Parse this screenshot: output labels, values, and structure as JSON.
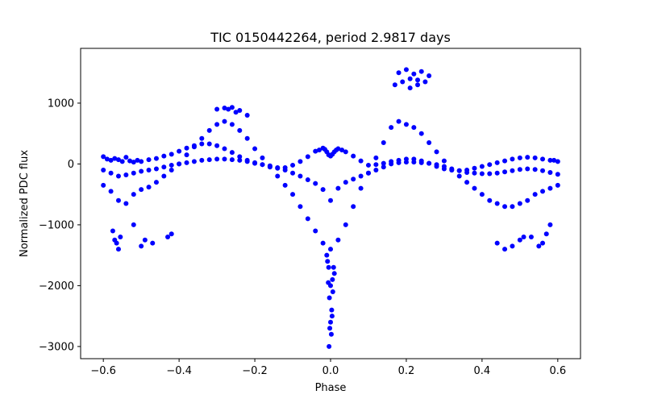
{
  "chart_data": {
    "type": "scatter",
    "title": "TIC 0150442264, period 2.9817 days",
    "xlabel": "Phase",
    "ylabel": "Normalized PDC flux",
    "xlim": [
      -0.66,
      0.66
    ],
    "ylim": [
      -3200,
      1900
    ],
    "xticks": [
      -0.6,
      -0.4,
      -0.2,
      0.0,
      0.2,
      0.4,
      0.6
    ],
    "xtick_labels": [
      "−0.6",
      "−0.4",
      "−0.2",
      "0.0",
      "0.2",
      "0.4",
      "0.6"
    ],
    "yticks": [
      -3000,
      -2000,
      -1000,
      0,
      1000
    ],
    "ytick_labels": [
      "−3000",
      "−2000",
      "−1000",
      "0",
      "1000"
    ],
    "grid": false,
    "marker_color": "#0000ff",
    "series": [
      {
        "x": [
          -0.6,
          -0.59,
          -0.58,
          -0.57,
          -0.56,
          -0.55,
          -0.54,
          -0.53,
          -0.52,
          -0.51,
          -0.5,
          -0.48,
          -0.46,
          -0.44,
          -0.42,
          -0.4,
          -0.38,
          -0.36,
          -0.34,
          -0.32,
          -0.3,
          -0.28,
          -0.26,
          -0.24,
          -0.22,
          -0.2,
          -0.18,
          -0.16,
          -0.14,
          -0.12,
          -0.1,
          -0.08,
          -0.06,
          -0.04,
          -0.03,
          -0.02,
          -0.015,
          -0.01,
          -0.005,
          0.0,
          0.005,
          0.01,
          0.015,
          0.02,
          0.03,
          0.04,
          0.06,
          0.08,
          0.1,
          0.12,
          0.14,
          0.16,
          0.18,
          0.2,
          0.22,
          0.24,
          0.26,
          0.28,
          0.3,
          0.32,
          0.34,
          0.36,
          0.38,
          0.4,
          0.42,
          0.44,
          0.46,
          0.48,
          0.5,
          0.52,
          0.54,
          0.56,
          0.58,
          0.59,
          0.6,
          -0.6,
          -0.58,
          -0.56,
          -0.54,
          -0.52,
          -0.5,
          -0.48,
          -0.46,
          -0.44,
          -0.42,
          -0.4,
          -0.38,
          -0.36,
          -0.34,
          -0.32,
          -0.3,
          -0.28,
          -0.26,
          -0.24,
          -0.22,
          -0.2,
          -0.18,
          -0.16,
          -0.14,
          -0.12,
          -0.1,
          -0.08,
          -0.06,
          -0.04,
          -0.02,
          0.0,
          0.02,
          0.04,
          0.06,
          0.08,
          0.1,
          0.12,
          0.14,
          0.16,
          0.18,
          0.2,
          0.22,
          0.24,
          0.26,
          0.28,
          0.3,
          0.32,
          0.34,
          0.36,
          0.38,
          0.4,
          0.42,
          0.44,
          0.46,
          0.48,
          0.5,
          0.52,
          0.54,
          0.56,
          0.58,
          0.6,
          -0.6,
          -0.58,
          -0.56,
          -0.54,
          -0.52,
          -0.5,
          -0.48,
          -0.46,
          -0.44,
          -0.42,
          -0.4,
          -0.38,
          -0.36,
          -0.34,
          -0.32,
          -0.3,
          -0.28,
          -0.26,
          -0.24,
          -0.22,
          -0.2,
          -0.18,
          -0.16,
          -0.14,
          -0.12,
          -0.1,
          -0.08,
          -0.06,
          -0.04,
          -0.02,
          0.0,
          0.02,
          0.04,
          0.06,
          0.08,
          0.1,
          0.12,
          0.14,
          0.16,
          0.18,
          0.2,
          0.22,
          0.24,
          0.26,
          0.28,
          0.3,
          0.32,
          0.34,
          0.36,
          0.38,
          0.4,
          0.42,
          0.44,
          0.46,
          0.48,
          0.5,
          0.52,
          0.54,
          0.56,
          0.58,
          0.6,
          -0.3,
          -0.28,
          -0.26,
          -0.24,
          -0.22,
          -0.25,
          -0.27,
          0.17,
          0.19,
          0.21,
          0.23,
          0.25,
          0.18,
          0.2,
          0.22,
          0.24,
          0.26,
          0.21,
          0.23,
          -0.575,
          -0.57,
          -0.565,
          -0.56,
          -0.555,
          -0.52,
          -0.5,
          -0.49,
          -0.47,
          -0.43,
          -0.42,
          0.44,
          0.46,
          0.48,
          0.5,
          0.51,
          0.53,
          0.55,
          0.56,
          0.57,
          0.58,
          -0.01,
          -0.005,
          0.0,
          0.005,
          0.01,
          -0.003,
          0.003,
          -0.008,
          0.008,
          0.0,
          0.002,
          -0.002,
          0.006,
          -0.006,
          0.004,
          -0.004
        ],
        "y": [
          120,
          80,
          60,
          90,
          70,
          40,
          110,
          50,
          30,
          60,
          40,
          70,
          90,
          130,
          160,
          210,
          260,
          300,
          330,
          330,
          300,
          250,
          190,
          120,
          60,
          20,
          -10,
          -40,
          -70,
          -60,
          -20,
          40,
          120,
          210,
          230,
          260,
          240,
          200,
          150,
          130,
          160,
          200,
          230,
          250,
          230,
          200,
          130,
          50,
          -20,
          -10,
          10,
          40,
          60,
          80,
          80,
          50,
          10,
          -40,
          -80,
          -100,
          -110,
          -100,
          -70,
          -40,
          -10,
          20,
          50,
          80,
          100,
          110,
          100,
          80,
          60,
          60,
          40,
          -100,
          -150,
          -200,
          -180,
          -150,
          -120,
          -100,
          -80,
          -50,
          -20,
          0,
          20,
          40,
          60,
          70,
          80,
          80,
          70,
          60,
          40,
          10,
          -10,
          -30,
          -60,
          -100,
          -150,
          -200,
          -260,
          -320,
          -420,
          -600,
          -400,
          -300,
          -250,
          -200,
          -150,
          -100,
          -50,
          0,
          20,
          30,
          30,
          20,
          10,
          -10,
          -40,
          -80,
          -110,
          -140,
          -150,
          -160,
          -160,
          -150,
          -130,
          -110,
          -90,
          -80,
          -90,
          -110,
          -140,
          -170,
          -350,
          -450,
          -600,
          -650,
          -500,
          -420,
          -380,
          -300,
          -200,
          -100,
          0,
          150,
          280,
          420,
          550,
          650,
          700,
          650,
          550,
          420,
          250,
          100,
          -50,
          -200,
          -350,
          -500,
          -700,
          -900,
          -1100,
          -1300,
          -1400,
          -1250,
          -1000,
          -700,
          -400,
          -150,
          100,
          350,
          600,
          700,
          650,
          600,
          500,
          350,
          200,
          50,
          -100,
          -200,
          -300,
          -400,
          -500,
          -600,
          -650,
          -700,
          -700,
          -650,
          -600,
          -500,
          -450,
          -400,
          -350,
          900,
          920,
          930,
          880,
          800,
          850,
          900,
          1300,
          1350,
          1400,
          1380,
          1350,
          1500,
          1550,
          1480,
          1520,
          1450,
          1250,
          1300,
          -1100,
          -1250,
          -1300,
          -1400,
          -1200,
          -1000,
          -1350,
          -1250,
          -1300,
          -1200,
          -1150,
          -1300,
          -1400,
          -1350,
          -1250,
          -1200,
          -1200,
          -1350,
          -1300,
          -1150,
          -1000,
          -1500,
          -1700,
          -2000,
          -1900,
          -1800,
          -2200,
          -2400,
          -1600,
          -1700,
          -2600,
          -2800,
          -2700,
          -2100,
          -1950,
          -2500,
          -3000
        ]
      }
    ]
  }
}
